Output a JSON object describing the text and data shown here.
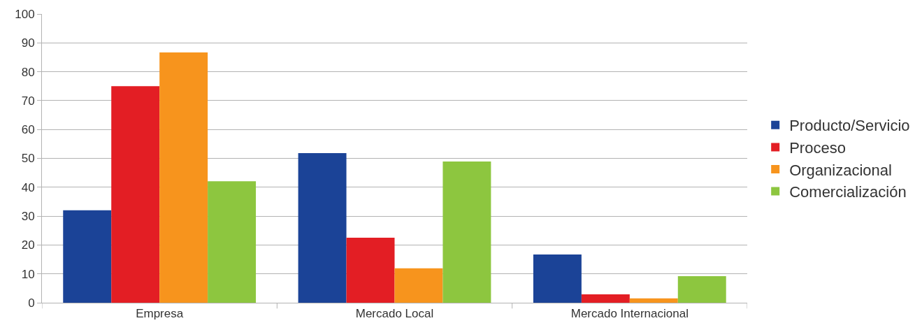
{
  "chart_data": {
    "type": "bar",
    "categories": [
      "Empresa",
      "Mercado Local",
      "Mercado Internacional"
    ],
    "series": [
      {
        "name": "Producto/Servicio",
        "color": "#1b4397",
        "values": [
          32,
          51.8,
          16.7
        ]
      },
      {
        "name": "Proceso",
        "color": "#e31e24",
        "values": [
          75,
          22.5,
          2.9
        ]
      },
      {
        "name": "Organizacional",
        "color": "#f7941d",
        "values": [
          86.7,
          11.9,
          1.5
        ]
      },
      {
        "name": "Comercialización",
        "color": "#8dc63f",
        "values": [
          42.1,
          48.9,
          9.2
        ]
      }
    ],
    "ylim": [
      0,
      100
    ],
    "yticks": [
      0,
      10,
      20,
      30,
      40,
      50,
      60,
      70,
      80,
      90,
      100
    ],
    "grid": "y",
    "legend": "right"
  }
}
